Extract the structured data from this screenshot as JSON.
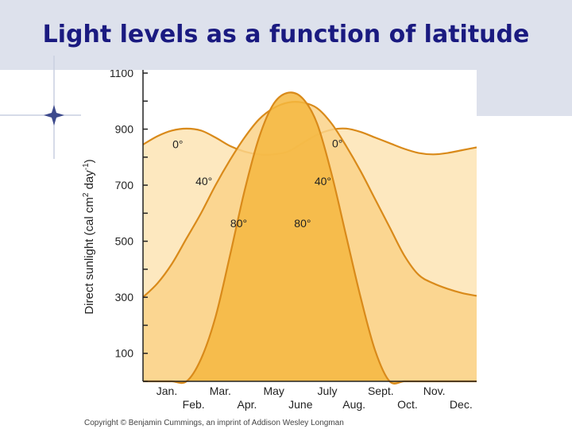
{
  "slide": {
    "title": "Light levels as a function of latitude",
    "accent_color": "#1a1a80",
    "background_color": "#d9dde8"
  },
  "figure": {
    "copyright": "Copyright © Benjamin Cummings, an imprint of Addison Wesley Longman"
  },
  "chart_data": {
    "type": "area",
    "title": "",
    "xlabel": "",
    "ylabel": "Direct sunlight (cal cm² day⁻¹)",
    "ylabel_parts": {
      "base": "Direct sunlight (cal cm",
      "sup1": "2",
      "mid": " day",
      "sup2": "-1",
      "end": ")"
    },
    "ylim": [
      0,
      1100
    ],
    "yticks": [
      100,
      300,
      500,
      700,
      900,
      1100
    ],
    "x_months_top": [
      "Jan.",
      "Mar.",
      "May",
      "July",
      "Sept.",
      "Nov."
    ],
    "x_months_bottom": [
      "Feb.",
      "Apr.",
      "June",
      "Aug.",
      "Oct.",
      "Dec."
    ],
    "x": [
      0,
      0.5,
      1,
      1.5,
      2,
      2.5,
      3,
      3.5,
      4,
      4.5,
      5,
      5.5,
      6,
      6.5,
      7,
      7.5,
      8,
      8.5,
      9,
      9.5,
      10,
      10.5,
      11,
      11.5
    ],
    "series": [
      {
        "name": "0°",
        "labels": [
          "0°",
          "0°"
        ],
        "color": "#fde8bf",
        "values": [
          845,
          875,
          895,
          902,
          895,
          870,
          840,
          820,
          810,
          810,
          820,
          850,
          880,
          898,
          902,
          890,
          870,
          850,
          830,
          815,
          810,
          815,
          825,
          835
        ]
      },
      {
        "name": "40°",
        "labels": [
          "40°",
          "40°"
        ],
        "color": "#fad288",
        "values": [
          300,
          350,
          420,
          510,
          600,
          700,
          790,
          870,
          935,
          975,
          995,
          995,
          975,
          920,
          840,
          750,
          650,
          550,
          450,
          380,
          350,
          330,
          315,
          305
        ]
      },
      {
        "name": "80°",
        "labels": [
          "80°",
          "80°"
        ],
        "color": "#f5b740",
        "values": [
          0,
          0,
          0,
          0,
          80,
          230,
          450,
          680,
          870,
          990,
          1030,
          1010,
          920,
          740,
          520,
          300,
          110,
          0,
          0,
          0,
          0,
          0,
          0,
          0
        ]
      }
    ],
    "line_color": "#d98a1a",
    "grid": false,
    "legend": "none"
  }
}
